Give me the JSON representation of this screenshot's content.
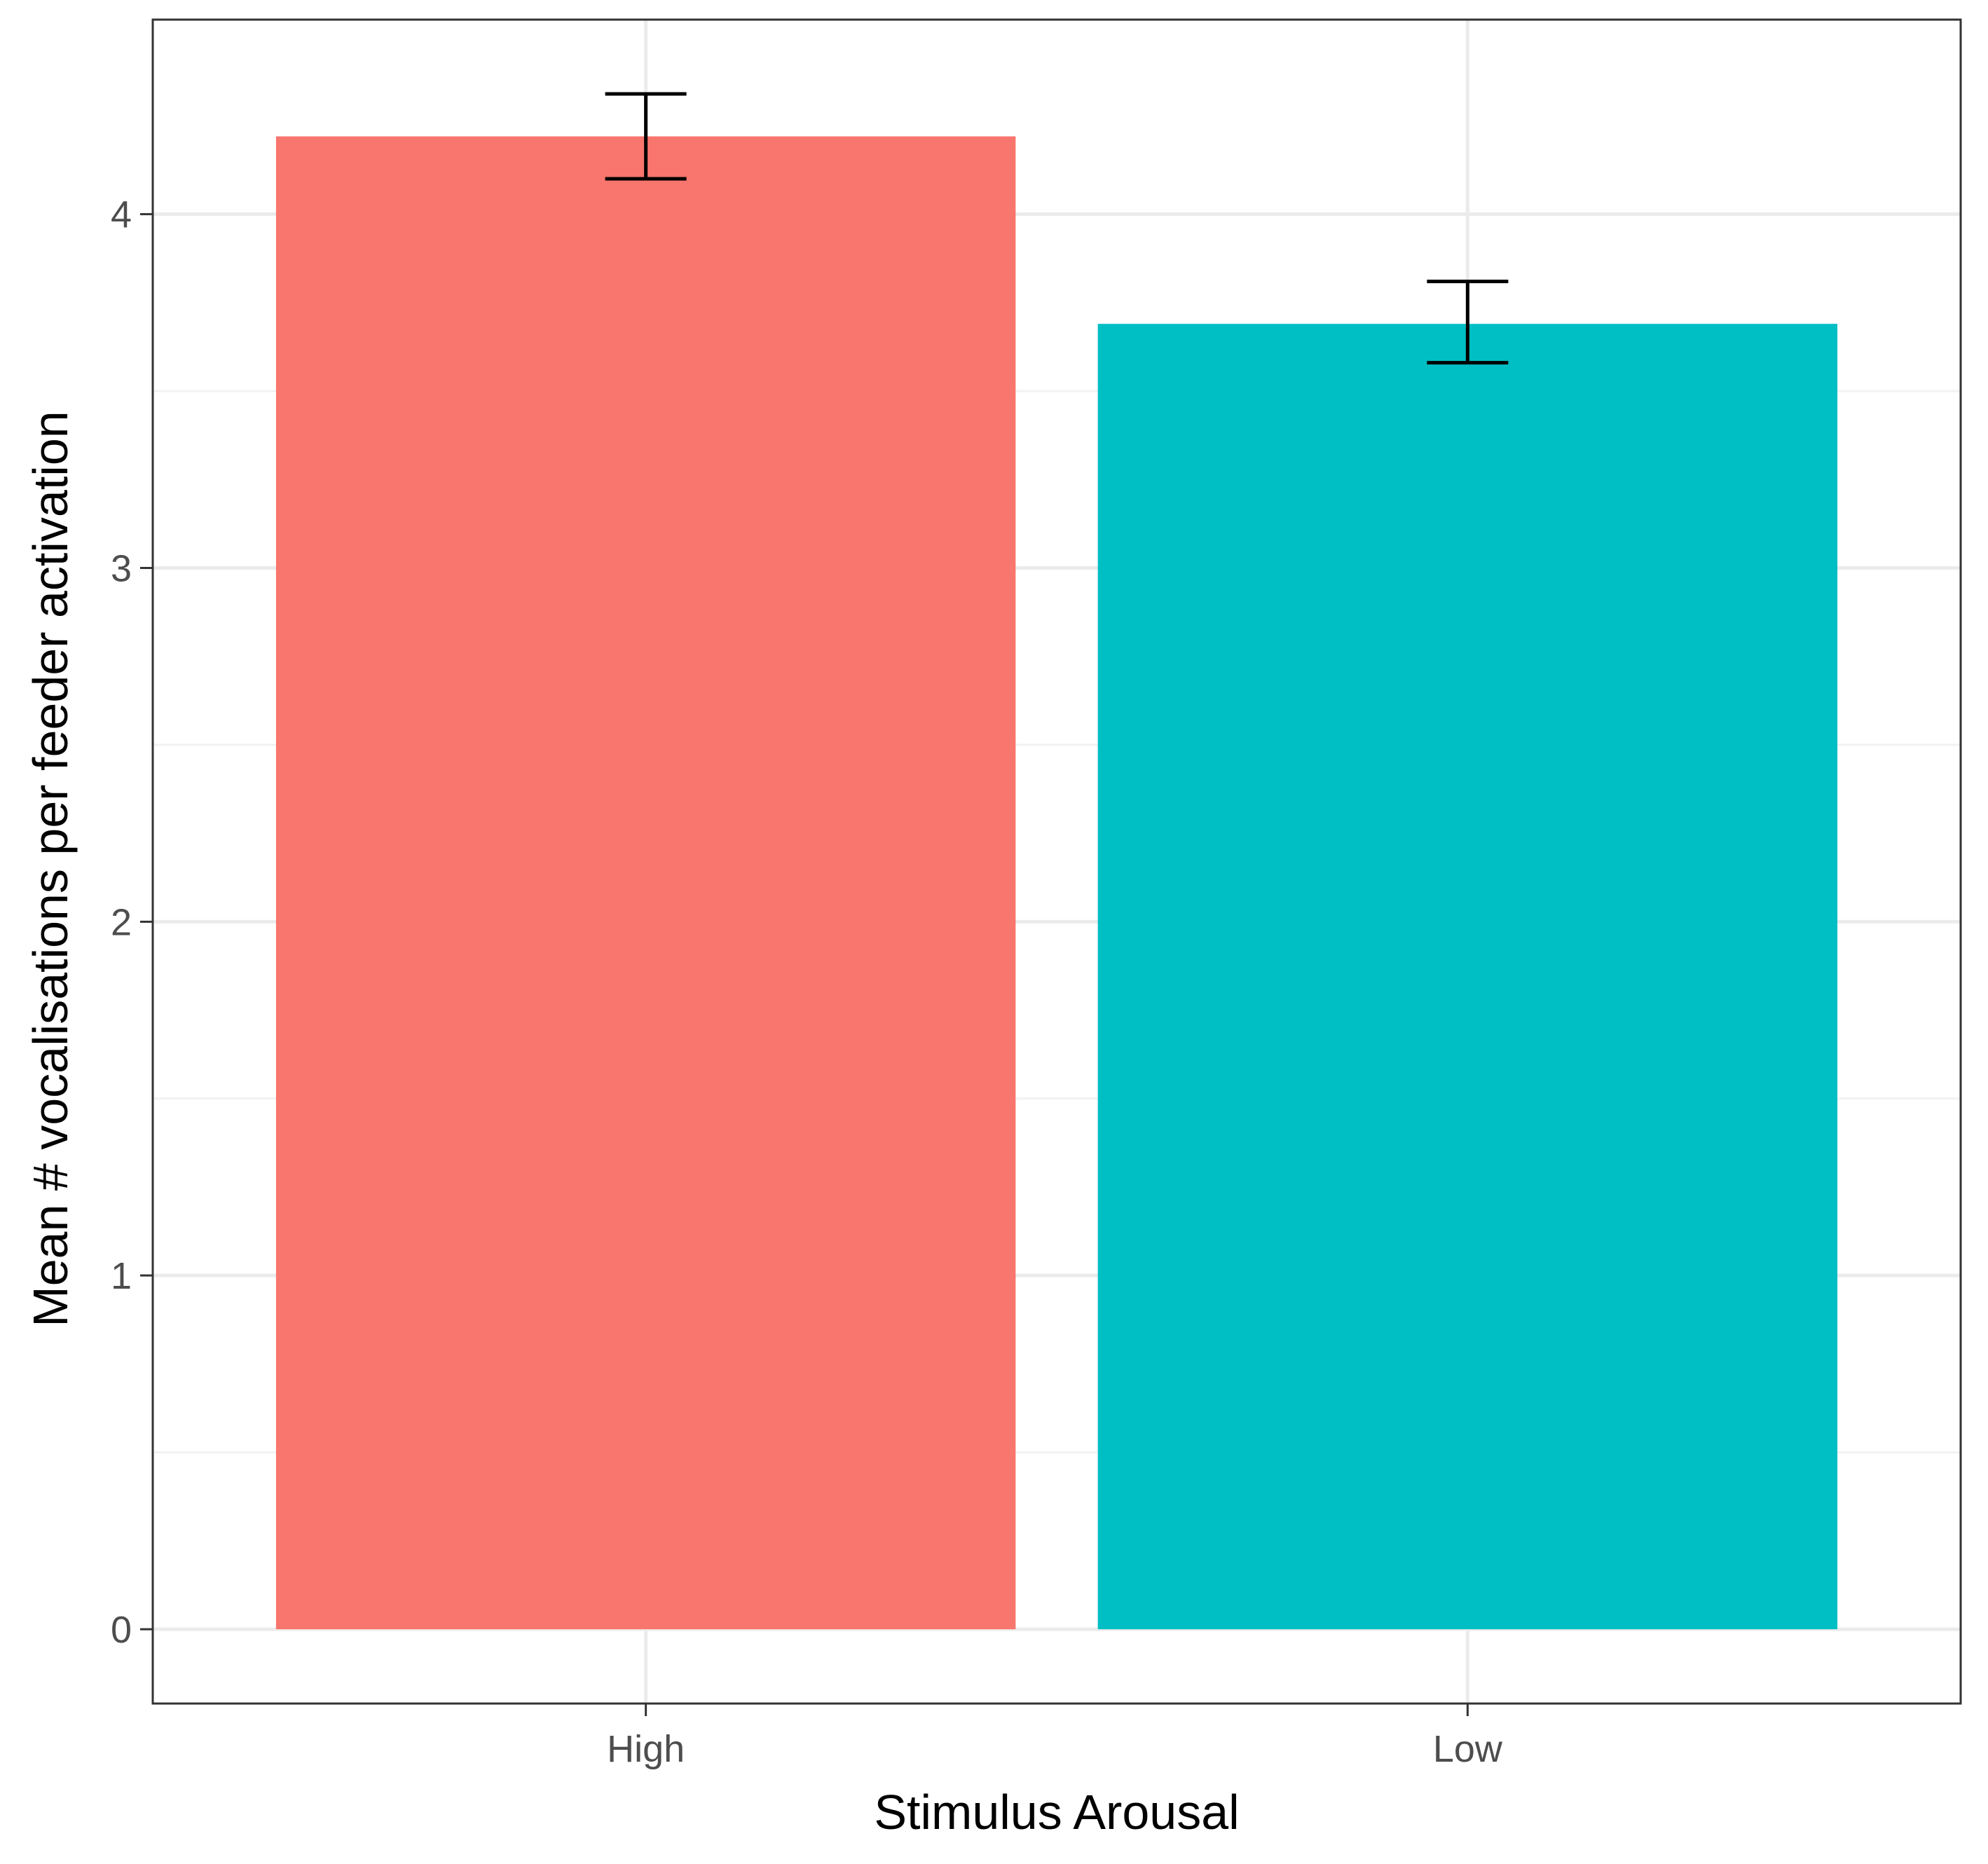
{
  "chart_data": {
    "type": "bar",
    "title": "",
    "xlabel": "Stimulus Arousal",
    "ylabel": "Mean # vocalisations per feeder activation",
    "categories": [
      "High",
      "Low"
    ],
    "values": [
      4.22,
      3.69
    ],
    "error_bars": [
      {
        "lower": 4.1,
        "upper": 4.34
      },
      {
        "lower": 3.58,
        "upper": 3.81
      }
    ],
    "colors": [
      "#F8766D",
      "#00BFC4"
    ],
    "ylim": [
      -0.21,
      4.55
    ],
    "y_ticks": [
      0,
      1,
      2,
      3,
      4
    ],
    "grid": true,
    "legend": "none"
  }
}
